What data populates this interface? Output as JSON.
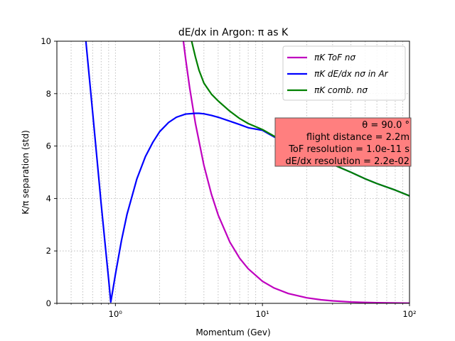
{
  "chart_data": {
    "type": "line",
    "title": "dE/dx in Argon: π as K",
    "xlabel": "Momentum (Gev)",
    "ylabel": "K/π separation (std)",
    "x_scale": "log",
    "xlim": [
      0.4,
      100
    ],
    "ylim": [
      0,
      10
    ],
    "grid": true,
    "legend_position": "top-right",
    "x_ticks": [
      1,
      10,
      100
    ],
    "x_tick_labels": [
      "10⁰",
      "10¹",
      "10²"
    ],
    "y_ticks": [
      0,
      2,
      4,
      6,
      8,
      10
    ],
    "y_tick_labels": [
      "0",
      "2",
      "4",
      "6",
      "8",
      "10"
    ],
    "series": [
      {
        "name": "πK ToF nσ",
        "color": "#bf00bf",
        "x": [
          2.9,
          3.0,
          3.2,
          3.5,
          4.0,
          4.5,
          5.0,
          6.0,
          7.0,
          8.0,
          10.0,
          12.0,
          15.0,
          20.0,
          25.0,
          30.0,
          40.0,
          50.0,
          60.0,
          80.0,
          100.0
        ],
        "y": [
          10.0,
          9.35,
          8.22,
          6.87,
          5.26,
          4.16,
          3.37,
          2.34,
          1.72,
          1.32,
          0.842,
          0.585,
          0.374,
          0.211,
          0.135,
          0.094,
          0.053,
          0.034,
          0.023,
          0.013,
          0.008
        ]
      },
      {
        "name": "πK dE/dx nσ in Ar",
        "color": "#0000ff",
        "x": [
          0.63,
          0.65,
          0.7,
          0.75,
          0.8,
          0.85,
          0.9,
          0.93,
          0.96,
          1.0,
          1.1,
          1.2,
          1.4,
          1.6,
          1.8,
          2.0,
          2.3,
          2.6,
          3.0,
          3.5,
          3.7,
          4.0,
          4.5,
          5.0,
          6.0,
          7.0,
          8.0,
          10.0,
          12.0,
          15.0,
          20.0,
          25.0,
          30.0,
          40.0,
          50.0,
          60.0,
          80.0,
          100.0
        ],
        "y": [
          10.0,
          9.2,
          7.3,
          5.5,
          3.8,
          2.3,
          0.9,
          0.05,
          0.5,
          1.1,
          2.4,
          3.4,
          4.75,
          5.6,
          6.15,
          6.55,
          6.9,
          7.1,
          7.22,
          7.25,
          7.25,
          7.23,
          7.17,
          7.1,
          6.95,
          6.82,
          6.7,
          6.6,
          6.35,
          6.1,
          5.75,
          5.5,
          5.3,
          5.0,
          4.75,
          4.57,
          4.32,
          4.1
        ]
      },
      {
        "name": "πK comb.  nσ",
        "color": "#008000",
        "x": [
          3.3,
          3.5,
          3.7,
          4.0,
          4.5,
          5.0,
          6.0,
          7.0,
          8.0,
          10.0,
          12.0,
          15.0,
          20.0,
          25.0,
          30.0,
          40.0,
          50.0,
          60.0,
          80.0,
          100.0
        ],
        "y": [
          10.0,
          9.4,
          8.9,
          8.4,
          7.98,
          7.72,
          7.33,
          7.05,
          6.86,
          6.63,
          6.38,
          6.11,
          5.75,
          5.5,
          5.3,
          5.0,
          4.75,
          4.57,
          4.32,
          4.1
        ]
      }
    ],
    "annotation": {
      "lines": [
        "θ = 90.0 °",
        "flight distance = 2.2m",
        "ToF resolution = 1.0e-11 s",
        "dE/dx resolution = 2.2e-02"
      ],
      "background": "#ff7f7f"
    }
  }
}
